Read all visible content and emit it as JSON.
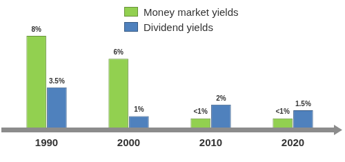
{
  "chart_data": {
    "type": "bar",
    "categories": [
      "1990",
      "2000",
      "2010",
      "2020"
    ],
    "series": [
      {
        "name": "Money market yields",
        "color": "#92d050",
        "values": [
          8,
          6,
          0.8,
          0.8
        ],
        "value_labels": [
          "8%",
          "6%",
          "<1%",
          "<1%"
        ]
      },
      {
        "name": "Dividend yields",
        "color": "#4f81bd",
        "values": [
          3.5,
          1,
          2,
          1.5
        ],
        "value_labels": [
          "3.5%",
          "1%",
          "2%",
          "1.5%"
        ]
      }
    ],
    "grid": false,
    "legend": "top",
    "data_labels": true,
    "tick_labels": "x"
  }
}
